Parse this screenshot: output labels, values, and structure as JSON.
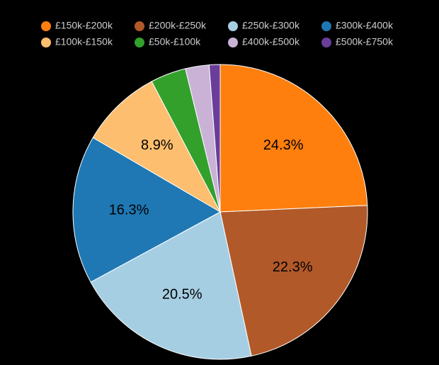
{
  "chart_data": {
    "type": "pie",
    "categories": [
      "£150k-£200k",
      "£200k-£250k",
      "£250k-£300k",
      "£300k-£400k",
      "£100k-£150k",
      "£50k-£100k",
      "£400k-£500k",
      "£500k-£750k"
    ],
    "values": [
      24.3,
      22.3,
      20.5,
      16.3,
      8.9,
      3.9,
      2.6,
      1.2
    ],
    "value_labels": [
      "24.3%",
      "22.3%",
      "20.5%",
      "16.3%",
      "8.9%",
      null,
      null,
      null
    ],
    "colors": [
      "#ff7f0e",
      "#b15928",
      "#a6cee3",
      "#1f78b4",
      "#fdbf6f",
      "#33a02c",
      "#cab2d6",
      "#6a3d9a"
    ],
    "legend": "top"
  }
}
